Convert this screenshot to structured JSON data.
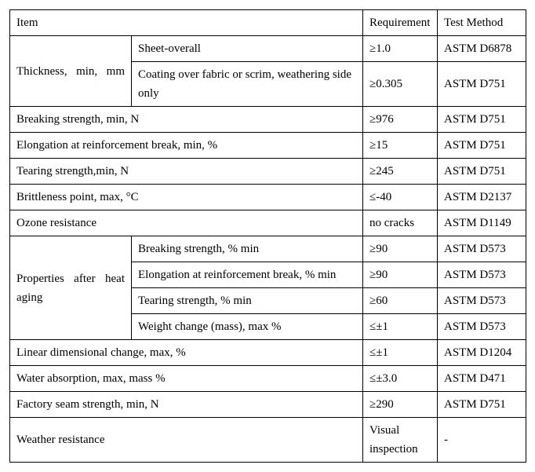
{
  "header": {
    "item": "Item",
    "requirement": "Requirement",
    "method": "Test Method"
  },
  "rows": {
    "thickness_label": "Thickness, min, mm",
    "thickness_sheet_label": "Sheet-overall",
    "thickness_sheet_req": "≥1.0",
    "thickness_sheet_method": "ASTM D6878",
    "thickness_coating_label": "Coating over fabric or scrim, weathering side only",
    "thickness_coating_req": "≥0.305",
    "thickness_coating_method": "ASTM D751",
    "breaking_label": "Breaking strength, min, N",
    "breaking_req": "≥976",
    "breaking_method": "ASTM D751",
    "elong_label": "Elongation at reinforcement break, min, %",
    "elong_req": "≥15",
    "elong_method": "ASTM D751",
    "tearing_label": "Tearing strength,min, N",
    "tearing_req": "≥245",
    "tearing_method": "ASTM D751",
    "brittle_label": "Brittleness point, max, °C",
    "brittle_req": "≤-40",
    "brittle_method": "ASTM D2137",
    "ozone_label": "Ozone resistance",
    "ozone_req": "no cracks",
    "ozone_method": "ASTM D1149",
    "heat_label": "Properties after heat aging",
    "heat_bs_label": "Breaking strength, % min",
    "heat_bs_req": "≥90",
    "heat_bs_method": "ASTM D573",
    "heat_el_label": "Elongation at reinforcement break, % min",
    "heat_el_req": "≥90",
    "heat_el_method": "ASTM D573",
    "heat_ts_label": "Tearing strength, % min",
    "heat_ts_req": "≥60",
    "heat_ts_method": "ASTM D573",
    "heat_wc_label": "Weight change (mass), max %",
    "heat_wc_req": "≤±1",
    "heat_wc_method": "ASTM D573",
    "linear_label": "Linear dimensional change, max, %",
    "linear_req": "≤±1",
    "linear_method": "ASTM D1204",
    "water_label": "Water absorption, max, mass %",
    "water_req": "≤±3.0",
    "water_method": "ASTM D471",
    "seam_label": "Factory seam strength, min, N",
    "seam_req": "≥290",
    "seam_method": "ASTM D751",
    "weather_label": "Weather resistance",
    "weather_req": "Visual inspection",
    "weather_method": "-"
  }
}
